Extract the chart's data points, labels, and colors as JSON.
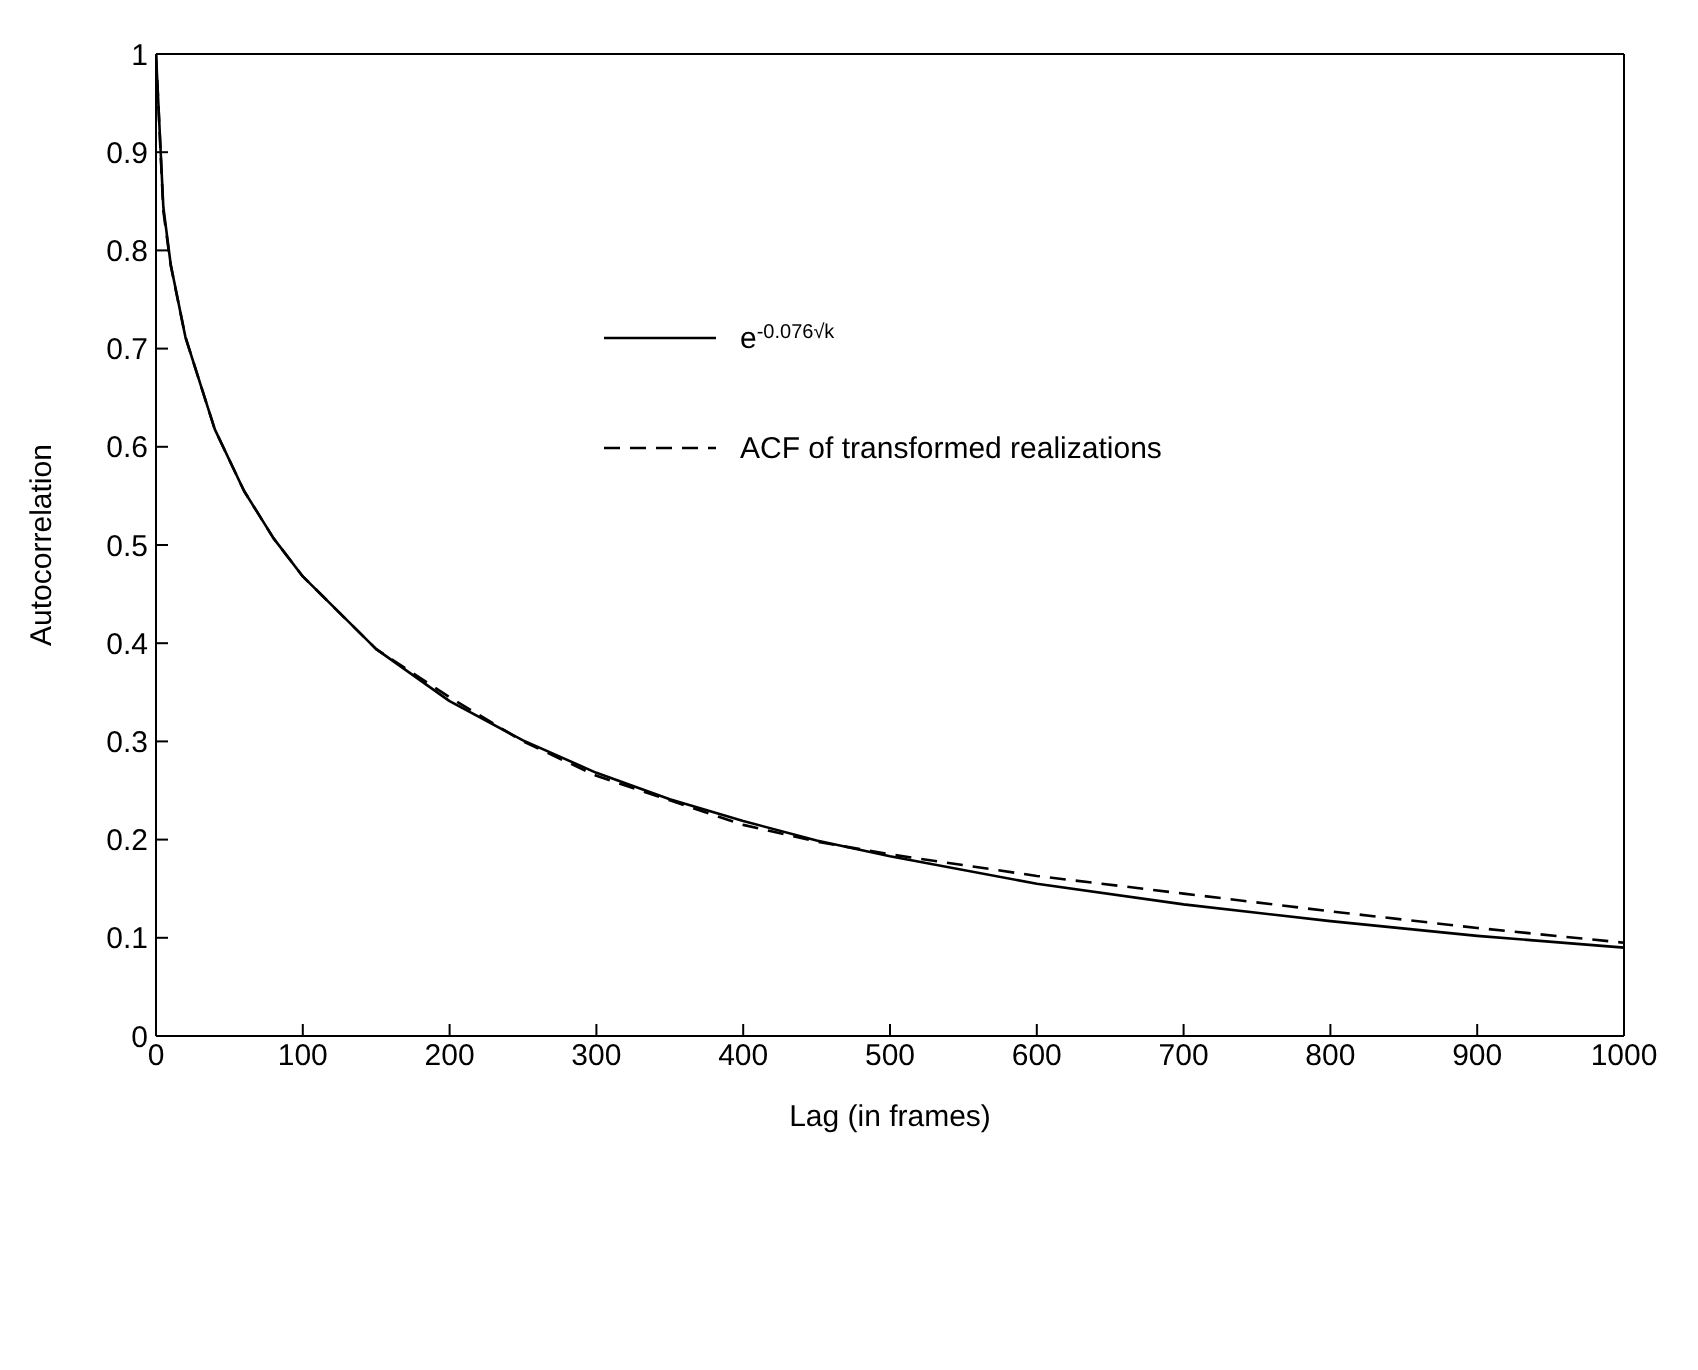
{
  "chart_data": {
    "type": "line",
    "xlabel": "Lag (in frames)",
    "ylabel": "Autocorrelation",
    "x": [
      0,
      5,
      10,
      20,
      40,
      60,
      80,
      100,
      150,
      200,
      250,
      300,
      350,
      400,
      450,
      500,
      600,
      700,
      800,
      900,
      1000
    ],
    "series": [
      {
        "name": "e$^{-0.076√k}$",
        "color": "#000000",
        "line_style": "solid",
        "values": [
          1,
          0.844,
          0.786,
          0.712,
          0.618,
          0.555,
          0.507,
          0.468,
          0.394,
          0.341,
          0.301,
          0.268,
          0.241,
          0.219,
          0.199,
          0.183,
          0.155,
          0.134,
          0.117,
          0.102,
          0.09
        ]
      },
      {
        "name": "ACF of transformed realizations",
        "color": "#000000",
        "line_style": "dashed",
        "values": [
          1,
          0.84,
          0.785,
          0.712,
          0.618,
          0.555,
          0.507,
          0.468,
          0.394,
          0.345,
          0.3,
          0.265,
          0.24,
          0.215,
          0.198,
          0.185,
          0.163,
          0.145,
          0.127,
          0.11,
          0.095
        ]
      }
    ],
    "xlim": [
      0,
      1000
    ],
    "xticks": [
      0,
      100,
      200,
      300,
      400,
      500,
      600,
      700,
      800,
      900,
      1000
    ],
    "ylim": [
      0,
      1
    ],
    "yticks": [
      0,
      0.1,
      0.2,
      0.3,
      0.4,
      0.5,
      0.6,
      0.7,
      0.8,
      0.9,
      1
    ],
    "grid": false,
    "legend": "top",
    "marker": "none"
  }
}
